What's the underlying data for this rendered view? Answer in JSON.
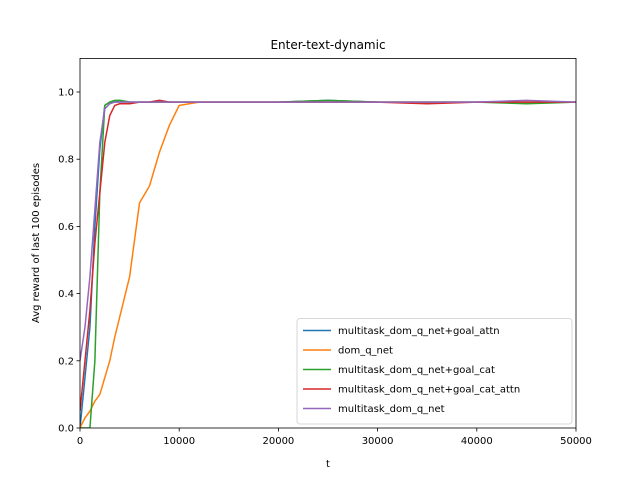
{
  "chart_data": {
    "type": "line",
    "title": "Enter-text-dynamic",
    "x_label": "t",
    "y_label": "Avg reward of last 100 episodes",
    "x": [
      0,
      500,
      1000,
      1500,
      2000,
      2500,
      3000,
      3500,
      4000,
      5000,
      6000,
      7000,
      8000,
      9000,
      10000,
      12000,
      15000,
      20000,
      25000,
      30000,
      35000,
      40000,
      45000,
      50000
    ],
    "series": [
      {
        "name": "multitask_dom_q_net+goal_attn",
        "color": "#1f77b4",
        "values": [
          0.0,
          0.15,
          0.3,
          0.6,
          0.83,
          0.96,
          0.97,
          0.97,
          0.975,
          0.97,
          0.97,
          0.97,
          0.975,
          0.97,
          0.97,
          0.97,
          0.97,
          0.97,
          0.975,
          0.97,
          0.97,
          0.97,
          0.97,
          0.97
        ]
      },
      {
        "name": "dom_q_net",
        "color": "#ff7f0e",
        "values": [
          0.0,
          0.03,
          0.05,
          0.08,
          0.1,
          0.15,
          0.2,
          0.27,
          0.33,
          0.45,
          0.67,
          0.72,
          0.82,
          0.9,
          0.96,
          0.97,
          0.97,
          0.97,
          0.97,
          0.97,
          0.97,
          0.97,
          0.97,
          0.97
        ]
      },
      {
        "name": "multitask_dom_q_net+goal_cat",
        "color": "#2ca02c",
        "values": [
          0.0,
          0.0,
          0.0,
          0.2,
          0.7,
          0.96,
          0.97,
          0.975,
          0.975,
          0.97,
          0.97,
          0.97,
          0.97,
          0.97,
          0.97,
          0.97,
          0.97,
          0.97,
          0.975,
          0.97,
          0.97,
          0.97,
          0.965,
          0.97
        ]
      },
      {
        "name": "multitask_dom_q_net+goal_cat_attn",
        "color": "#d62728",
        "values": [
          0.05,
          0.2,
          0.35,
          0.55,
          0.7,
          0.85,
          0.93,
          0.96,
          0.965,
          0.965,
          0.97,
          0.97,
          0.975,
          0.97,
          0.97,
          0.97,
          0.97,
          0.97,
          0.97,
          0.97,
          0.965,
          0.97,
          0.97,
          0.97
        ]
      },
      {
        "name": "multitask_dom_q_net",
        "color": "#9467bd",
        "values": [
          0.2,
          0.3,
          0.45,
          0.65,
          0.85,
          0.95,
          0.965,
          0.97,
          0.97,
          0.97,
          0.97,
          0.97,
          0.97,
          0.97,
          0.97,
          0.97,
          0.97,
          0.97,
          0.97,
          0.97,
          0.97,
          0.97,
          0.975,
          0.97
        ]
      }
    ],
    "xlim": [
      0,
      50000
    ],
    "ylim": [
      0,
      1.1
    ],
    "xticks": [
      0,
      10000,
      20000,
      30000,
      40000,
      50000
    ],
    "yticks": [
      {
        "value": 0,
        "label": "0.0"
      },
      0.2,
      0.4,
      0.6,
      0.8,
      {
        "value": 1,
        "label": "1.0"
      }
    ],
    "legend": "lower right"
  }
}
